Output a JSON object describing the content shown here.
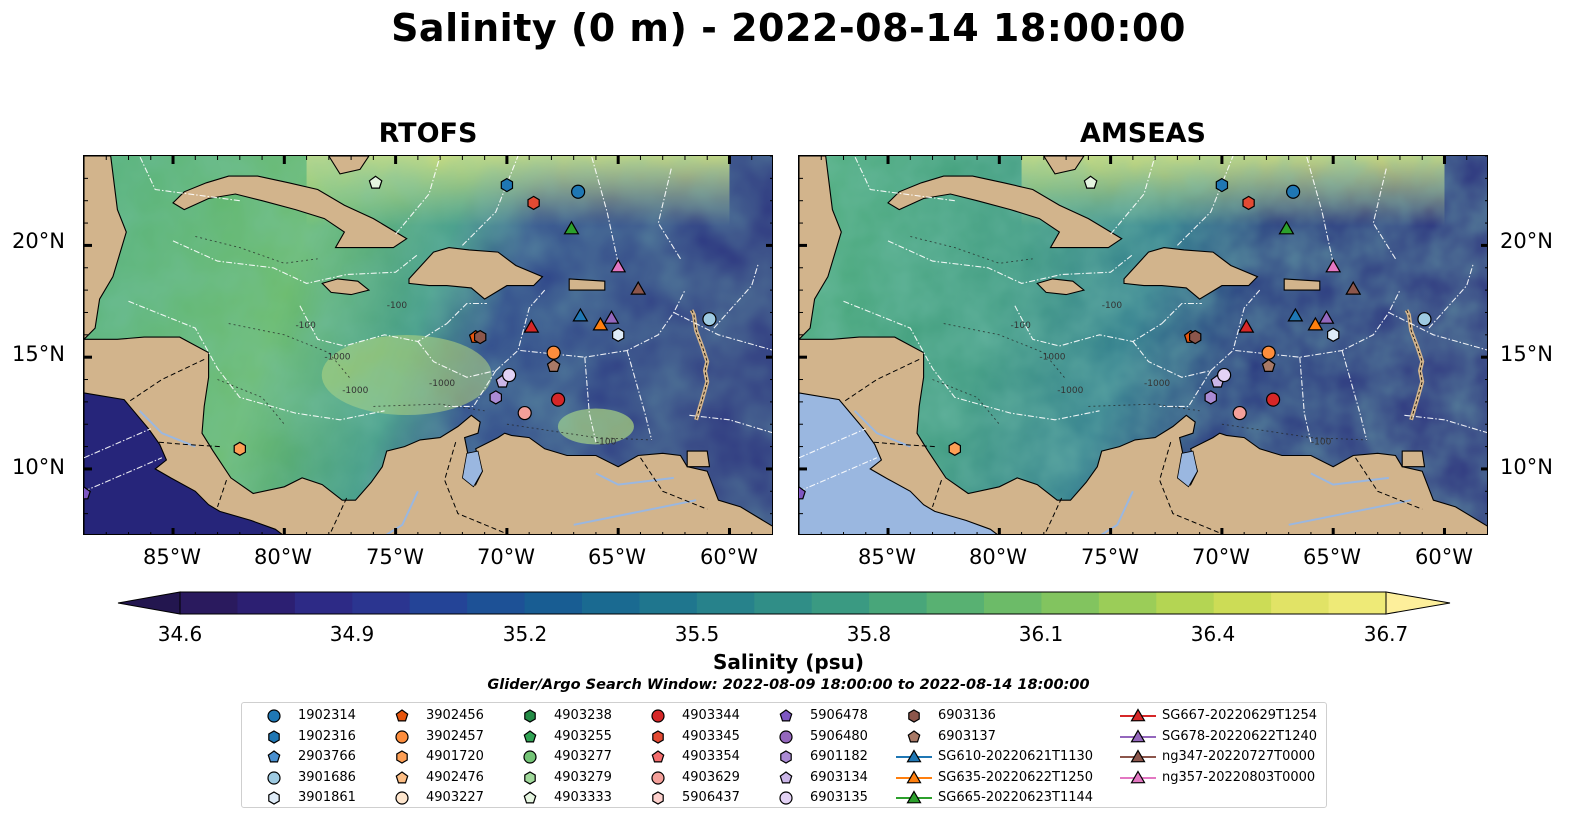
{
  "title": "Salinity (0 m) - 2022-08-14 18:00:00",
  "panels": [
    {
      "title": "RTOFS",
      "model": "rtofs"
    },
    {
      "title": "AMSEAS",
      "model": "amseas"
    }
  ],
  "map_extent": {
    "lon": [
      -89,
      -58
    ],
    "lat": [
      7,
      24
    ]
  },
  "lon_ticks": [
    "85°W",
    "80°W",
    "75°W",
    "70°W",
    "65°W",
    "60°W"
  ],
  "lat_ticks": [
    "20°N",
    "15°N",
    "10°N"
  ],
  "contour_labels": [
    "-100",
    "-1000"
  ],
  "colorbar": {
    "label": "Salinity (psu)",
    "ticks": [
      "34.6",
      "34.9",
      "35.2",
      "35.5",
      "35.8",
      "36.1",
      "36.4",
      "36.7"
    ],
    "range": [
      34.6,
      36.7
    ],
    "extend": "both",
    "colormap": "haline"
  },
  "colors": {
    "land": "#d2b48c",
    "lake": "#9ab7e0",
    "eez_lines": "#ffffff",
    "coast": "#000000"
  },
  "search_window": "Glider/Argo Search Window: 2022-08-09 18:00:00 to 2022-08-14 18:00:00",
  "legend": [
    {
      "label": "1902314",
      "marker": "circle",
      "color": "#1f77b4"
    },
    {
      "label": "1902316",
      "marker": "hexagon",
      "color": "#1f77b4"
    },
    {
      "label": "2903766",
      "marker": "pentagon",
      "color": "#4a90d0"
    },
    {
      "label": "3901686",
      "marker": "circle",
      "color": "#9ecae1"
    },
    {
      "label": "3901861",
      "marker": "hexagon",
      "color": "#deebf7"
    },
    {
      "label": "3902456",
      "marker": "pentagon",
      "color": "#e6550d"
    },
    {
      "label": "3902457",
      "marker": "circle",
      "color": "#fd8d3c"
    },
    {
      "label": "4901720",
      "marker": "hexagon",
      "color": "#fd9f55"
    },
    {
      "label": "4902476",
      "marker": "pentagon",
      "color": "#fdbe85"
    },
    {
      "label": "4903227",
      "marker": "circle",
      "color": "#fee6ce"
    },
    {
      "label": "4903238",
      "marker": "hexagon",
      "color": "#238b45"
    },
    {
      "label": "4903255",
      "marker": "pentagon",
      "color": "#31a354"
    },
    {
      "label": "4903277",
      "marker": "circle",
      "color": "#74c476"
    },
    {
      "label": "4903279",
      "marker": "hexagon",
      "color": "#a1d99b"
    },
    {
      "label": "4903333",
      "marker": "pentagon",
      "color": "#e5f5e0"
    },
    {
      "label": "4903344",
      "marker": "circle",
      "color": "#d62728"
    },
    {
      "label": "4903345",
      "marker": "hexagon",
      "color": "#e34a33"
    },
    {
      "label": "4903354",
      "marker": "pentagon",
      "color": "#f46d6d"
    },
    {
      "label": "4903629",
      "marker": "circle",
      "color": "#f4a09a"
    },
    {
      "label": "5906437",
      "marker": "hexagon",
      "color": "#fdd0cc"
    },
    {
      "label": "5906478",
      "marker": "pentagon",
      "color": "#7e57c2"
    },
    {
      "label": "5906480",
      "marker": "circle",
      "color": "#9467bd"
    },
    {
      "label": "6901182",
      "marker": "hexagon",
      "color": "#ab8bd4"
    },
    {
      "label": "6903134",
      "marker": "pentagon",
      "color": "#cbb6e8"
    },
    {
      "label": "6903135",
      "marker": "circle",
      "color": "#e3d2f5"
    },
    {
      "label": "6903136",
      "marker": "hexagon",
      "color": "#8c564b"
    },
    {
      "label": "6903137",
      "marker": "pentagon",
      "color": "#a87966"
    },
    {
      "label": "SG610-20220621T1130",
      "marker": "triangle-line",
      "color": "#1f77b4"
    },
    {
      "label": "SG635-20220622T1250",
      "marker": "triangle-line",
      "color": "#ff7f0e"
    },
    {
      "label": "SG665-20220623T1144",
      "marker": "triangle-line",
      "color": "#2ca02c"
    },
    {
      "label": "SG667-20220629T1254",
      "marker": "triangle-line",
      "color": "#d62728"
    },
    {
      "label": "SG678-20220622T1240",
      "marker": "triangle-line",
      "color": "#9467bd"
    },
    {
      "label": "ng347-20220727T0000",
      "marker": "triangle-line",
      "color": "#8c564b"
    },
    {
      "label": "ng357-20220803T0000",
      "marker": "triangle-line",
      "color": "#e377c2"
    }
  ],
  "observations": [
    {
      "id": "1902314",
      "lon": -66.8,
      "lat": 22.4
    },
    {
      "id": "1902316",
      "lon": -70.0,
      "lat": 22.7
    },
    {
      "id": "3901686",
      "lon": -60.9,
      "lat": 16.7
    },
    {
      "id": "3901861",
      "lon": -65.0,
      "lat": 16.0
    },
    {
      "id": "3902457",
      "lon": -67.9,
      "lat": 15.2
    },
    {
      "id": "4901720",
      "lon": -82.0,
      "lat": 10.9
    },
    {
      "id": "3902456",
      "lon": -71.4,
      "lat": 15.9
    },
    {
      "id": "4903333",
      "lon": -75.9,
      "lat": 22.8
    },
    {
      "id": "4903344",
      "lon": -67.7,
      "lat": 13.1
    },
    {
      "id": "4903345",
      "lon": -68.8,
      "lat": 21.9
    },
    {
      "id": "4903629",
      "lon": -69.2,
      "lat": 12.5
    },
    {
      "id": "5906478",
      "lon": -89.0,
      "lat": 8.9
    },
    {
      "id": "6901182",
      "lon": -70.5,
      "lat": 13.2
    },
    {
      "id": "6903134",
      "lon": -70.2,
      "lat": 13.9
    },
    {
      "id": "6903135",
      "lon": -69.9,
      "lat": 14.2
    },
    {
      "id": "6903136",
      "lon": -71.2,
      "lat": 15.9
    },
    {
      "id": "6903137",
      "lon": -67.9,
      "lat": 14.6
    },
    {
      "id": "SG610-20220621T1130",
      "lon": -66.7,
      "lat": 16.8
    },
    {
      "id": "SG635-20220622T1250",
      "lon": -65.8,
      "lat": 16.4
    },
    {
      "id": "SG665-20220623T1144",
      "lon": -67.1,
      "lat": 20.7
    },
    {
      "id": "SG667-20220629T1254",
      "lon": -68.9,
      "lat": 16.3
    },
    {
      "id": "SG678-20220622T1240",
      "lon": -65.3,
      "lat": 16.7
    },
    {
      "id": "ng347-20220727T0000",
      "lon": -64.1,
      "lat": 18.0
    },
    {
      "id": "ng357-20220803T0000",
      "lon": -65.0,
      "lat": 19.0
    }
  ]
}
